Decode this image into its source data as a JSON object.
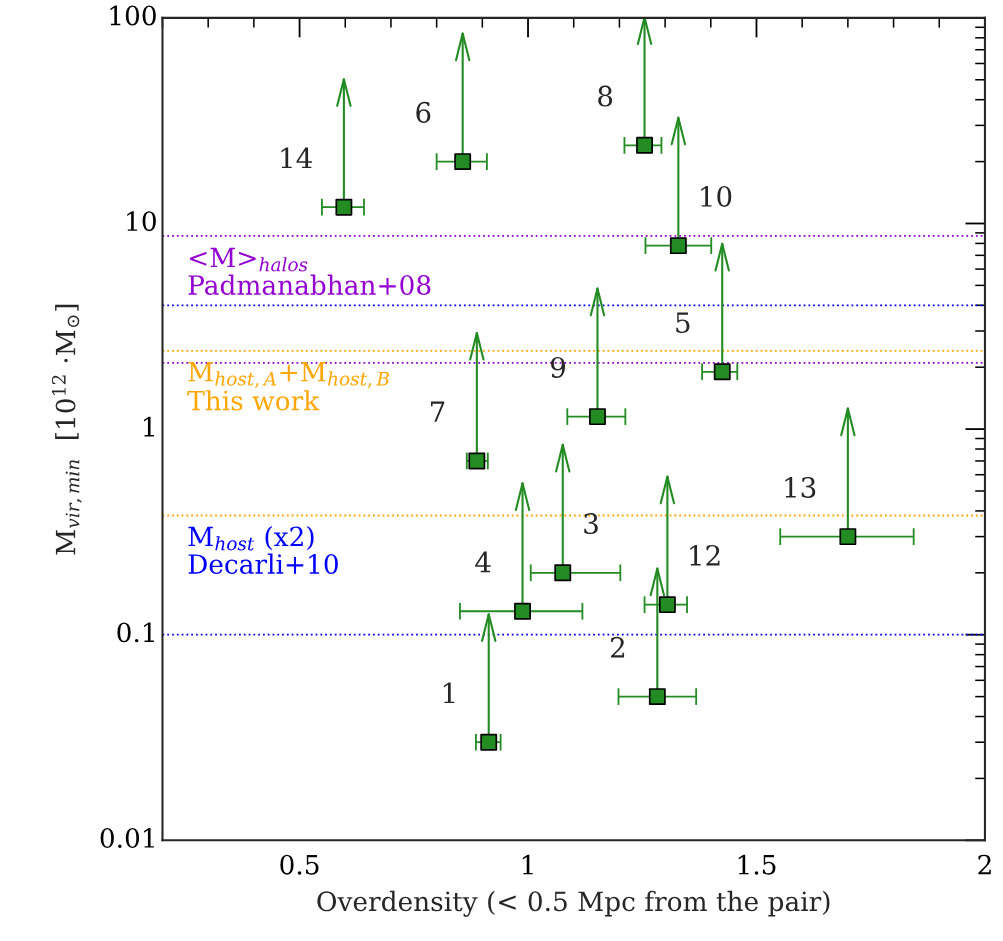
{
  "chart_data": {
    "type": "scatter",
    "xlabel": "Overdensity (< 0.5 Mpc from the pair)",
    "ylabel": "M$_{vir,min}$  [10$^{12}$ ·M$_{⊙}$]",
    "log": "y",
    "xlim": [
      0.2,
      2
    ],
    "xticks": [
      0.5,
      1,
      1.5,
      2
    ],
    "ylim": [
      0.01,
      100
    ],
    "yticks": [
      0.01,
      0.1,
      1,
      10,
      100
    ],
    "grid": false,
    "marker": "square",
    "series": [
      {
        "color": "#228b22",
        "x": [
          0.914,
          1.283,
          1.076,
          0.988,
          1.425,
          0.857,
          0.888,
          1.255,
          1.152,
          1.329,
          1.305,
          1.7,
          0.597
        ],
        "values": [
          0.03,
          0.05,
          0.2,
          0.13,
          1.9,
          20,
          0.7,
          24,
          1.15,
          7.8,
          0.14,
          0.3,
          12
        ],
        "xerrors": [
          [
            0.886,
            0.94
          ],
          [
            1.198,
            1.368
          ],
          [
            1.006,
            1.202
          ],
          [
            0.851,
            1.119
          ],
          [
            1.381,
            1.458
          ],
          [
            0.8,
            0.91
          ],
          [
            0.866,
            0.912
          ],
          [
            1.211,
            1.292
          ],
          [
            1.086,
            1.213
          ],
          [
            1.257,
            1.401
          ],
          [
            1.255,
            1.348
          ],
          [
            1.552,
            1.844
          ],
          [
            0.549,
            0.641
          ]
        ]
      }
    ],
    "annotations": [
      {
        "text": "1",
        "x": 0.914,
        "y": 0.03
      },
      {
        "text": "2",
        "x": 1.283,
        "y": 0.05
      },
      {
        "text": "3",
        "x": 1.076,
        "y": 0.2
      },
      {
        "text": "4",
        "x": 0.988,
        "y": 0.13
      },
      {
        "text": "5",
        "x": 1.425,
        "y": 1.9
      },
      {
        "text": "6",
        "x": 0.857,
        "y": 20
      },
      {
        "text": "7",
        "x": 0.888,
        "y": 0.7
      },
      {
        "text": "8",
        "x": 1.255,
        "y": 24
      },
      {
        "text": "9",
        "x": 1.152,
        "y": 1.15
      },
      {
        "text": "10",
        "x": 1.329,
        "y": 7.8
      },
      {
        "text": "12",
        "x": 1.305,
        "y": 0.14
      },
      {
        "text": "13",
        "x": 1.7,
        "y": 0.3
      },
      {
        "text": "14",
        "x": 0.597,
        "y": 12
      }
    ],
    "ref_lines": [
      {
        "axis": "y",
        "value": 8.7,
        "color": "#9400d3",
        "line_style": "dotted",
        "label": "<M>$_{halos}$\nPadmanabhan+08"
      },
      {
        "axis": "y",
        "value": 4.0,
        "color": "#0000ff",
        "line_style": "dotted"
      },
      {
        "axis": "y",
        "value": 2.4,
        "color": "#ffa500",
        "line_style": "dotted",
        "label": "M$_{host,A}$+M$_{host,B}$\nThis work"
      },
      {
        "axis": "y",
        "value": 2.1,
        "color": "#9400d3",
        "line_style": "dotted"
      },
      {
        "axis": "y",
        "value": 0.38,
        "color": "#ffa500",
        "line_style": "dotted"
      },
      {
        "axis": "y",
        "value": 0.1,
        "color": "#0000ff",
        "line_style": "dotted",
        "label": "M$_{host}$ (x2)\nDecarli+10"
      }
    ]
  }
}
